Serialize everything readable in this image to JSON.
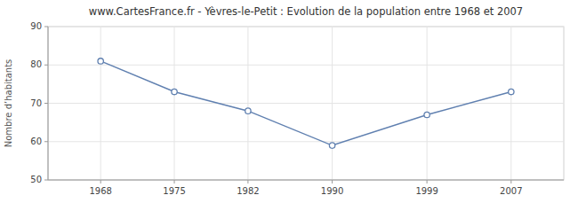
{
  "chart_data": {
    "type": "line",
    "title": "www.CartesFrance.fr - Yèvres-le-Petit : Evolution de la population entre 1968 et 2007",
    "ylabel": "Nombre d’habitants",
    "x": [
      1968,
      1975,
      1982,
      1990,
      1999,
      2007
    ],
    "values": [
      81,
      73,
      68,
      59,
      67,
      73
    ],
    "color": "#6080b0",
    "marker": "circle",
    "xlim": [
      1963,
      2012
    ],
    "ylim": [
      50,
      90
    ],
    "xticks": [
      1968,
      1975,
      1982,
      1990,
      1999,
      2007
    ],
    "yticks": [
      50,
      60,
      70,
      80,
      90
    ],
    "grid": true
  }
}
